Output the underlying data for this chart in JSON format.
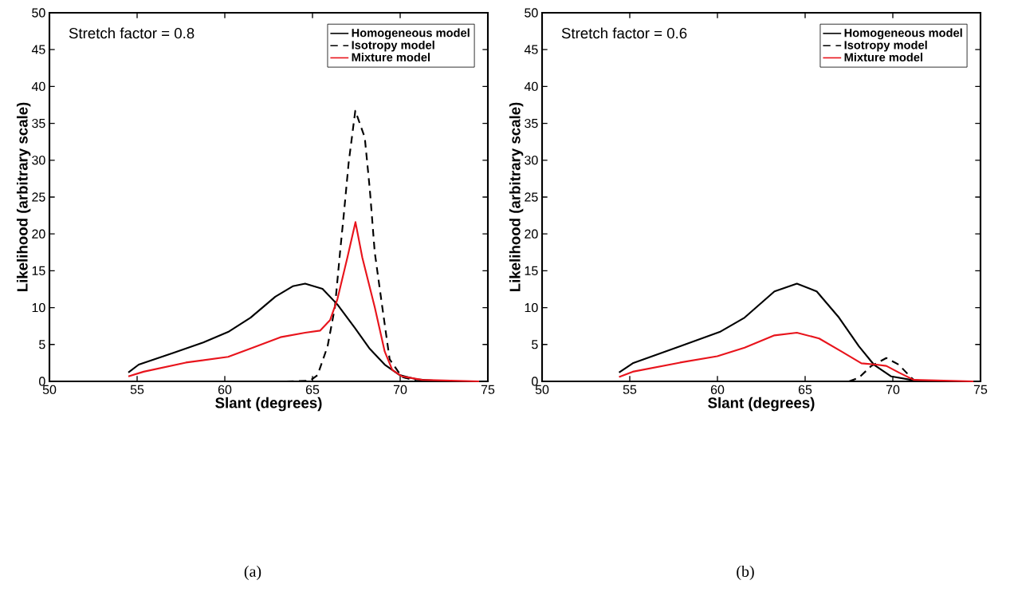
{
  "chart_data": [
    {
      "type": "line",
      "xlabel": "Slant (degrees)",
      "ylabel": "Likelihood (arbitrary scale)",
      "xlim": [
        50,
        75
      ],
      "ylim": [
        0,
        50
      ],
      "xticks": [
        50,
        55,
        60,
        65,
        70,
        75
      ],
      "yticks": [
        0,
        5,
        10,
        15,
        20,
        25,
        30,
        35,
        40,
        45,
        50
      ],
      "grid": false,
      "legend": "top right",
      "annotations": [
        "Stretch factor = 0.8",
        "(a)"
      ],
      "series": [
        {
          "name": "Homogeneous model",
          "color": "#000000",
          "line_style": "solid",
          "x": [
            54.5,
            55.09,
            57.07,
            58.77,
            60.19,
            61.47,
            62.88,
            63.87,
            64.58,
            65.57,
            66.42,
            67.42,
            68.27,
            69.12,
            69.97,
            71.0,
            72.5,
            74.5
          ],
          "values": [
            1.2,
            2.27,
            3.86,
            5.28,
            6.7,
            8.65,
            11.49,
            12.9,
            13.26,
            12.55,
            10.43,
            7.23,
            4.4,
            2.27,
            0.85,
            0.25,
            0,
            0
          ]
        },
        {
          "name": "Isotropy model",
          "color": "#000000",
          "line_style": "dashed",
          "x": [
            63.5,
            64.87,
            65.29,
            65.86,
            66.28,
            66.57,
            66.78,
            67.06,
            67.44,
            67.98,
            68.27,
            68.55,
            68.98,
            69.4,
            70.1,
            71.0,
            74.5
          ],
          "values": [
            0,
            0.1,
            0.85,
            4.75,
            10.07,
            17.5,
            22.5,
            29.6,
            36.7,
            33.1,
            26.0,
            17.5,
            10.07,
            2.98,
            0.6,
            0,
            0
          ]
        },
        {
          "name": "Mixture model",
          "color": "#e8141c",
          "line_style": "solid",
          "x": [
            54.5,
            55.37,
            57.78,
            60.19,
            61.6,
            63.17,
            64.58,
            65.43,
            66.0,
            66.42,
            66.99,
            67.45,
            67.84,
            68.55,
            69.12,
            69.55,
            70.11,
            71.25,
            74.5
          ],
          "values": [
            0.67,
            1.31,
            2.55,
            3.33,
            4.57,
            5.99,
            6.6,
            6.88,
            8.3,
            11.14,
            16.8,
            21.6,
            16.8,
            10.07,
            4.04,
            1.56,
            0.67,
            0.2,
            0
          ]
        }
      ]
    },
    {
      "type": "line",
      "xlabel": "Slant (degrees)",
      "ylabel": "Likelihood (arbitrary scale)",
      "xlim": [
        50,
        75
      ],
      "ylim": [
        0,
        50
      ],
      "xticks": [
        50,
        55,
        60,
        65,
        70,
        75
      ],
      "yticks": [
        0,
        5,
        10,
        15,
        20,
        25,
        30,
        35,
        40,
        45,
        50
      ],
      "grid": false,
      "legend": "top right",
      "annotations": [
        "Stretch factor = 0.6",
        "(b)"
      ],
      "series": [
        {
          "name": "Homogeneous model",
          "color": "#000000",
          "line_style": "solid",
          "x": [
            54.39,
            55.17,
            57.87,
            60.13,
            61.55,
            63.25,
            64.53,
            65.66,
            66.93,
            68.07,
            68.92,
            69.91,
            71.05,
            72.0,
            74.5
          ],
          "values": [
            1.2,
            2.45,
            4.75,
            6.7,
            8.65,
            12.2,
            13.26,
            12.2,
            8.65,
            4.75,
            2.27,
            0.67,
            0.2,
            0,
            0
          ]
        },
        {
          "name": "Isotropy model",
          "color": "#000000",
          "line_style": "dashed",
          "x": [
            67.5,
            68.07,
            68.78,
            69.63,
            70.34,
            71.05,
            71.3
          ],
          "values": [
            0,
            0.5,
            2.1,
            3.16,
            2.27,
            0.5,
            0
          ]
        },
        {
          "name": "Mixture model",
          "color": "#e8141c",
          "line_style": "solid",
          "x": [
            54.39,
            55.17,
            57.87,
            59.99,
            61.55,
            63.25,
            64.53,
            65.8,
            67.08,
            68.21,
            69.06,
            69.63,
            70.34,
            71.19,
            74.6
          ],
          "values": [
            0.6,
            1.31,
            2.55,
            3.4,
            4.57,
            6.24,
            6.6,
            5.82,
            4.04,
            2.45,
            2.27,
            2.1,
            1.2,
            0.2,
            0
          ]
        }
      ]
    }
  ]
}
